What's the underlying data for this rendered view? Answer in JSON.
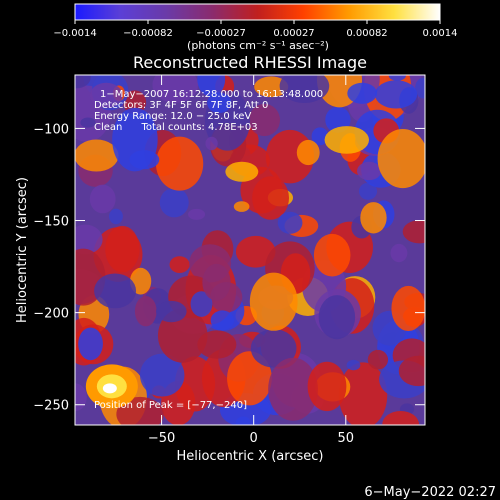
{
  "chart_data": {
    "type": "heatmap",
    "title": "Reconstructed RHESSI Image",
    "xlabel": "Heliocentric X (arcsec)",
    "ylabel": "Heliocentric Y (arcsec)",
    "xlim": [
      -97,
      93
    ],
    "ylim": [
      -261,
      -71
    ],
    "x_ticks": [
      -50,
      0,
      50
    ],
    "y_ticks": [
      -100,
      -150,
      -200,
      -250
    ],
    "x_tick_labels": [
      "−50",
      "0",
      "50"
    ],
    "y_tick_labels": [
      "−100",
      "−150",
      "−200",
      "−250"
    ],
    "colorbar": {
      "range": [
        -0.0014,
        0.0014
      ],
      "tick_labels": [
        "−0.0014",
        "−0.00082",
        "−0.00027",
        "0.00027",
        "0.00082",
        "0.0014"
      ],
      "units": "(photons cm⁻² s⁻¹ asec⁻²)",
      "colors": [
        "#1a1aff",
        "#5b3fd6",
        "#6a3aa8",
        "#8a2b6e",
        "#c01f1f",
        "#ff4000",
        "#ff9a00",
        "#ffe040",
        "#ffffff"
      ]
    },
    "annotations": [
      "1−May−2007 16:12:28.000 to 16:13:48.000",
      "Detectors: 3F 4F 5F 6F 7F 8F, Att 0",
      "Energy Range: 12.0 − 25.0 keV",
      "Clean      Total counts: 4.78E+03",
      "Position of Peak = [−77,−240]"
    ],
    "peak": [
      -77,
      -240
    ]
  },
  "footer": {
    "date": "6−May−2022 02:27"
  }
}
